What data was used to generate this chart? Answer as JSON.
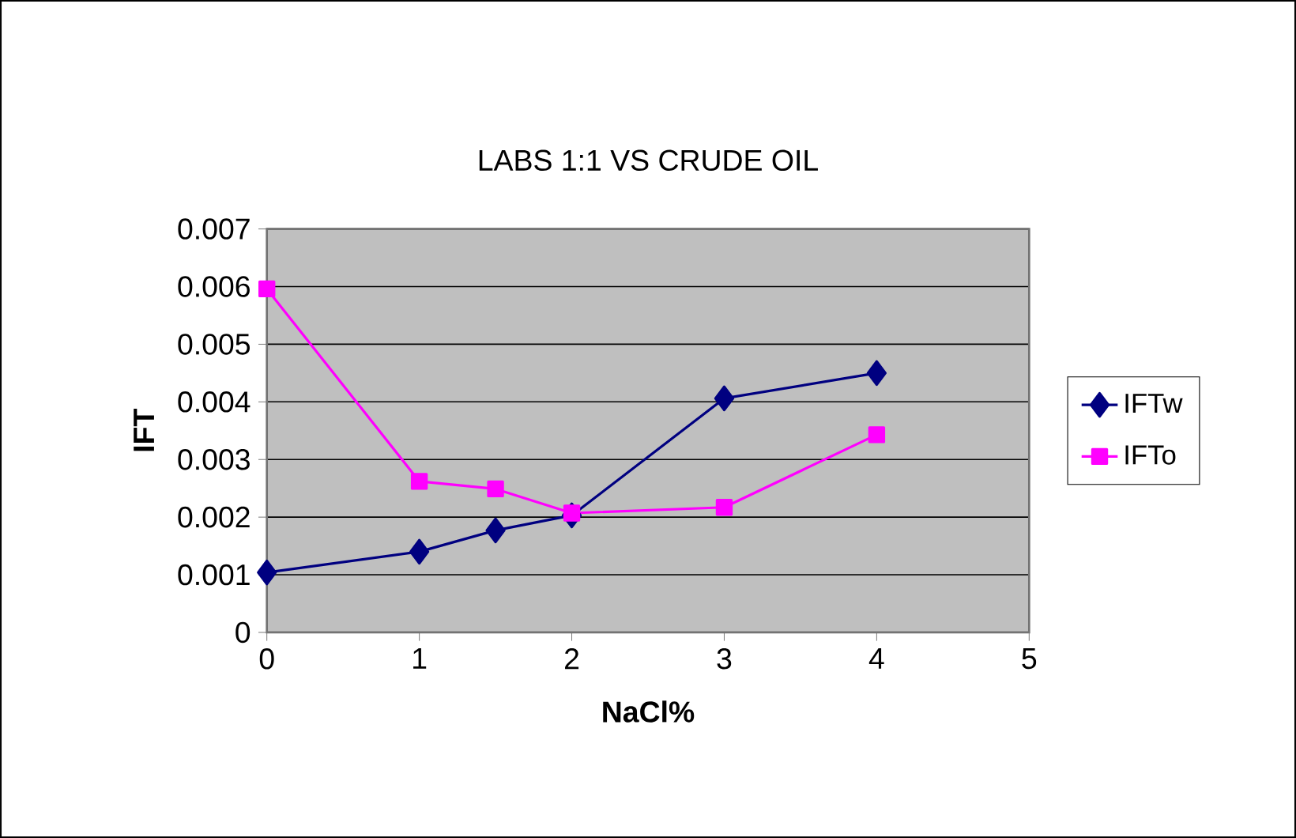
{
  "chart_data": {
    "type": "line",
    "title": "LABS 1:1 VS CRUDE OIL",
    "xlabel": "NaCl%",
    "ylabel": "IFT",
    "x": [
      0,
      1,
      1.5,
      2,
      3,
      4
    ],
    "series": [
      {
        "name": "IFTw",
        "color": "#000080",
        "marker": "diamond",
        "values": [
          0.00104,
          0.0014,
          0.00177,
          0.00203,
          0.00406,
          0.0045
        ]
      },
      {
        "name": "IFTo",
        "color": "#ff00ff",
        "marker": "square",
        "values": [
          0.00596,
          0.00262,
          0.00249,
          0.00207,
          0.00217,
          0.00343
        ]
      }
    ],
    "xlim": [
      0,
      5
    ],
    "xticks": [
      0,
      1,
      2,
      3,
      4,
      5
    ],
    "ylim": [
      0,
      0.007
    ],
    "yticks": [
      0,
      0.001,
      0.002,
      0.003,
      0.004,
      0.005,
      0.006,
      0.007
    ],
    "grid": "y",
    "legend": "right",
    "line_style": "solid"
  }
}
